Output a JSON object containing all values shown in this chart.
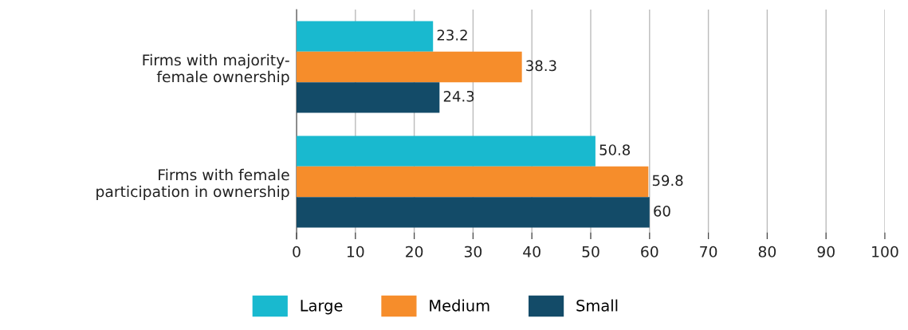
{
  "chart_data": {
    "type": "bar",
    "orientation": "horizontal",
    "categories": [
      "Firms with majority-\nfemale ownership",
      "Firms with female\nparticipation in ownership"
    ],
    "series": [
      {
        "name": "Large",
        "color": "#19b9cf",
        "values": [
          23.2,
          50.8
        ]
      },
      {
        "name": "Medium",
        "color": "#f68d2b",
        "values": [
          38.3,
          59.8
        ]
      },
      {
        "name": "Small",
        "color": "#134b68",
        "values": [
          24.3,
          60
        ]
      }
    ],
    "xlim": [
      0,
      100
    ],
    "xticks": [
      0,
      10,
      20,
      30,
      40,
      50,
      60,
      70,
      80,
      90,
      100
    ],
    "grid": "x",
    "legend": "bottom",
    "data_labels": true
  }
}
